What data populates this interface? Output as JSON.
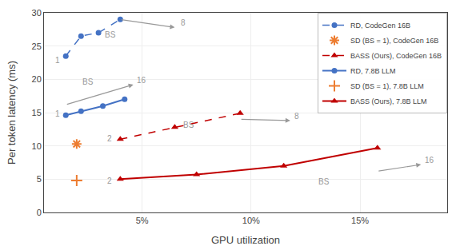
{
  "chart_data": {
    "type": "line",
    "xlabel": "GPU utilization",
    "ylabel": "Per token latency (ms)",
    "series": [
      {
        "name": "RD, CodeGen 16B",
        "color": "#4472c4",
        "line_style": "dashed",
        "marker": "circle",
        "x": [
          1.5,
          2.2,
          3.0,
          4.0
        ],
        "values": [
          23.5,
          26.5,
          27.0,
          29.0
        ]
      },
      {
        "name": "SD (BS = 1), CodeGen 16B",
        "color": "#ed7d31",
        "line_style": "none",
        "marker": "asterisk",
        "x": [
          2.0
        ],
        "values": [
          10.3
        ]
      },
      {
        "name": "BASS (Ours), CodeGen 16B",
        "color": "#c00000",
        "line_style": "dashed",
        "marker": "triangle",
        "x": [
          4.0,
          6.5,
          9.5
        ],
        "values": [
          11.0,
          12.8,
          14.9
        ]
      },
      {
        "name": "RD, 7.8B LLM",
        "color": "#4472c4",
        "line_style": "solid",
        "marker": "circle",
        "x": [
          1.5,
          2.2,
          3.2,
          4.2
        ],
        "values": [
          14.6,
          15.2,
          16.0,
          17.0
        ]
      },
      {
        "name": "SD (BS = 1), 7.8B LLM",
        "color": "#ed7d31",
        "line_style": "none",
        "marker": "plus",
        "x": [
          2.0
        ],
        "values": [
          4.8
        ]
      },
      {
        "name": "BASS (Ours), 7.8B LLM",
        "color": "#c00000",
        "line_style": "solid",
        "marker": "triangle",
        "x": [
          4.0,
          7.5,
          11.5,
          15.8
        ],
        "values": [
          5.0,
          5.7,
          7.0,
          9.7
        ]
      }
    ],
    "xlim": [
      0.5,
      19.0
    ],
    "ylim": [
      0,
      30
    ],
    "xticks": [
      {
        "value": 5,
        "label": "5%"
      },
      {
        "value": 10,
        "label": "10%"
      },
      {
        "value": 15,
        "label": "15%"
      }
    ],
    "yticks": [
      0,
      5,
      10,
      15,
      20,
      25,
      30
    ],
    "grid": true,
    "legend": "upper right",
    "arrows": [
      {
        "x0": 4.0,
        "y0": 29.0,
        "x1": 6.5,
        "y1": 27.8,
        "color": "#999999"
      },
      {
        "x0": 1.5,
        "y0": 16.2,
        "x1": 4.6,
        "y1": 19.2,
        "color": "#999999"
      },
      {
        "x0": 9.5,
        "y0": 14.0,
        "x1": 11.8,
        "y1": 13.8,
        "color": "#999999"
      },
      {
        "x0": 15.8,
        "y0": 6.2,
        "x1": 17.8,
        "y1": 7.2,
        "color": "#999999"
      }
    ],
    "annotations": [
      {
        "text": "BS",
        "x": 3.2,
        "y": 25.8,
        "color": "#999999",
        "align": "left"
      },
      {
        "text": "8",
        "x": 6.7,
        "y": 27.6,
        "color": "#999999",
        "align": "left"
      },
      {
        "text": "BS",
        "x": 2.2,
        "y": 18.7,
        "color": "#999999",
        "align": "left"
      },
      {
        "text": "16",
        "x": 4.7,
        "y": 19.0,
        "color": "#999999",
        "align": "left"
      },
      {
        "text": "BS",
        "x": 6.8,
        "y": 12.3,
        "color": "#999999",
        "align": "left"
      },
      {
        "text": "8",
        "x": 11.9,
        "y": 13.6,
        "color": "#999999",
        "align": "left"
      },
      {
        "text": "BS",
        "x": 13.0,
        "y": 3.7,
        "color": "#999999",
        "align": "left"
      },
      {
        "text": "16",
        "x": 17.9,
        "y": 7.0,
        "color": "#999999",
        "align": "left"
      },
      {
        "text": "1",
        "x": 1.3,
        "y": 22.0,
        "color": "#999999",
        "align": "right"
      },
      {
        "text": "1",
        "x": 1.3,
        "y": 13.9,
        "color": "#999999",
        "align": "right"
      },
      {
        "text": "2",
        "x": 3.7,
        "y": 10.2,
        "color": "#999999",
        "align": "right"
      },
      {
        "text": "2",
        "x": 3.7,
        "y": 3.9,
        "color": "#999999",
        "align": "right"
      }
    ]
  }
}
